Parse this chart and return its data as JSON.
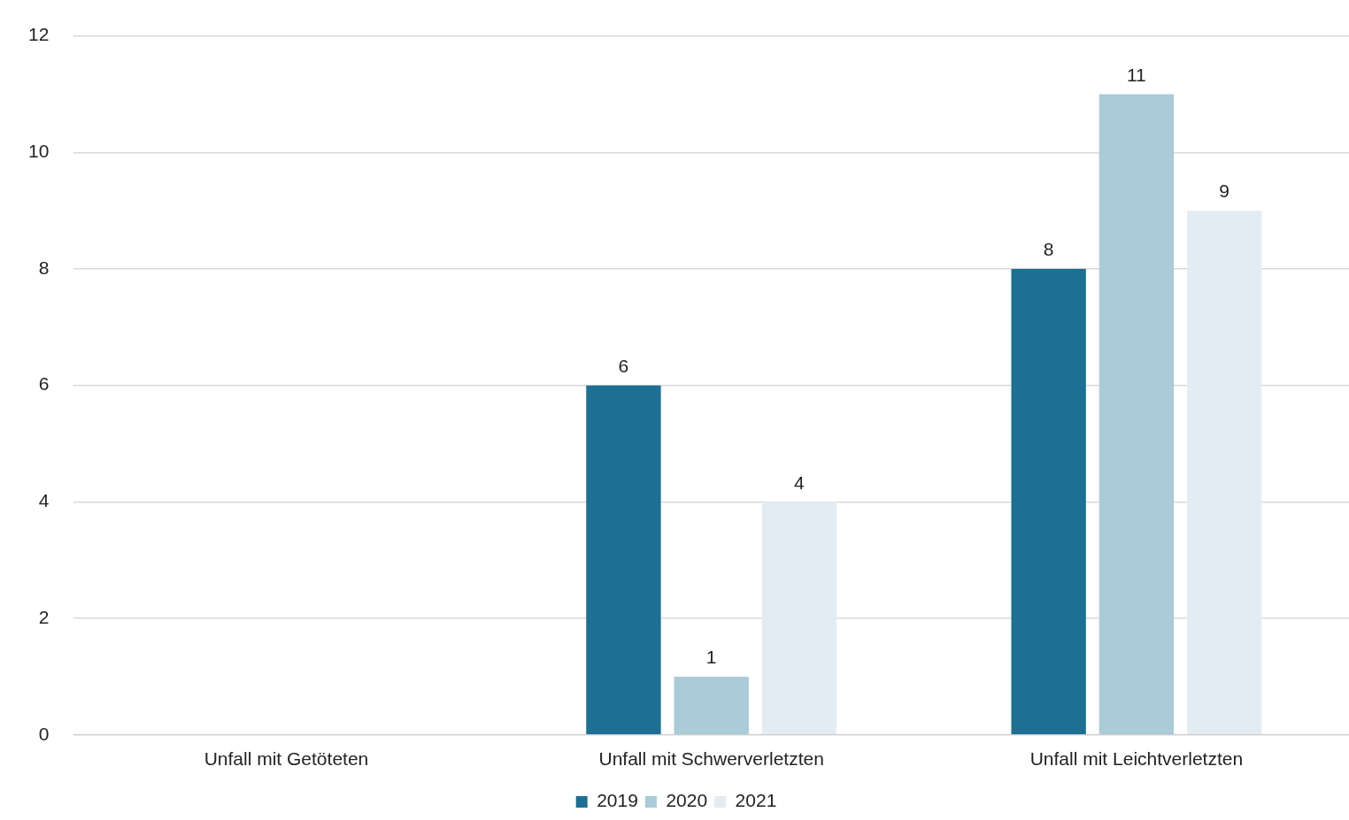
{
  "chart_data": {
    "type": "bar",
    "categories": [
      "Unfall mit Getöteten",
      "Unfall mit Schwerverletzten",
      "Unfall mit Leichtverletzten"
    ],
    "series": [
      {
        "name": "2019",
        "color": "#1d6f93",
        "values": [
          0,
          6,
          8
        ],
        "value_labels": [
          null,
          "6",
          "8"
        ]
      },
      {
        "name": "2020",
        "color": "#aacbd8",
        "values": [
          0,
          1,
          11
        ],
        "value_labels": [
          null,
          "1",
          "11"
        ]
      },
      {
        "name": "2021",
        "color": "#e3ecf2",
        "values": [
          0,
          4,
          9
        ],
        "value_labels": [
          null,
          "4",
          "9"
        ]
      }
    ],
    "ylim": [
      0,
      12
    ],
    "yticks": [
      0,
      2,
      4,
      6,
      8,
      10,
      12
    ],
    "grid": "y",
    "legend": "bottom"
  }
}
